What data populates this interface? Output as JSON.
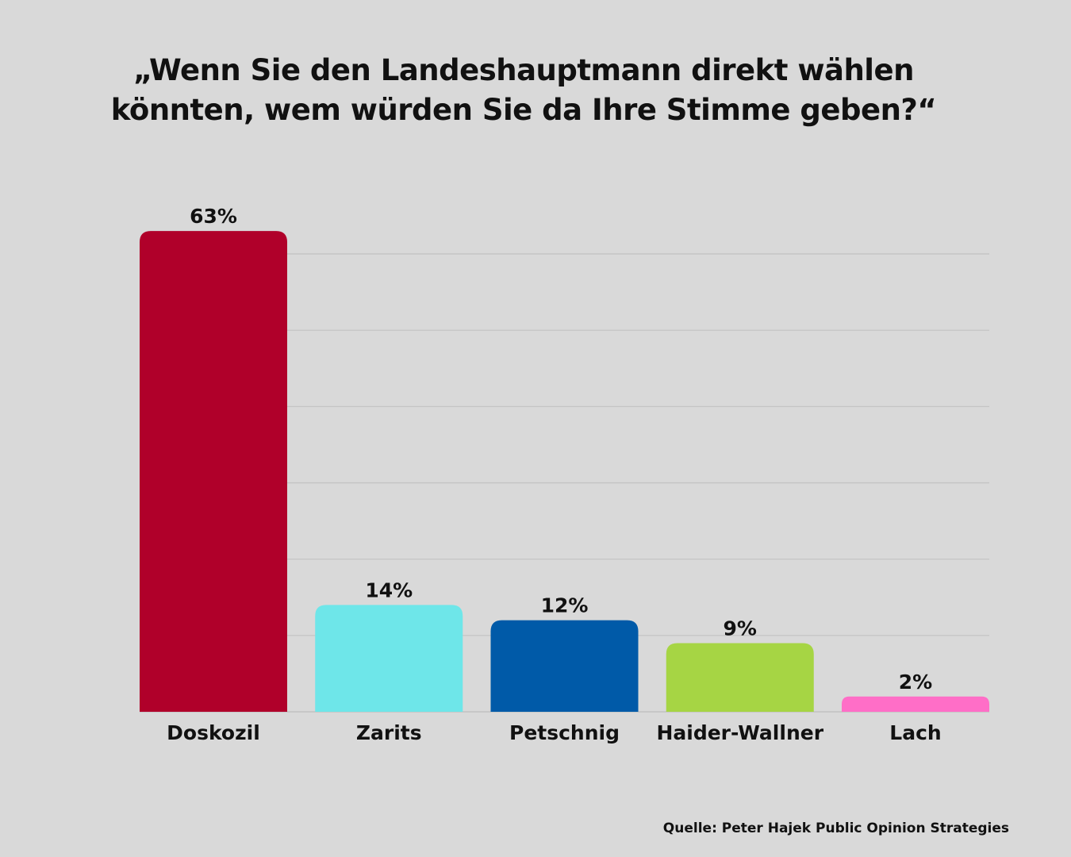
{
  "chart_data": {
    "type": "bar",
    "title": "„Wenn Sie den Landeshauptmann direkt wählen könnten, wem würden Sie da Ihre Stimme geben?“",
    "categories": [
      "Doskozil",
      "Zarits",
      "Petschnig",
      "Haider-Wallner",
      "Lach"
    ],
    "values": [
      63,
      14,
      12,
      9,
      2
    ],
    "value_labels": [
      "63%",
      "14%",
      "12%",
      "9%",
      "2%"
    ],
    "colors": [
      "#b0002a",
      "#6ee6e9",
      "#005aa8",
      "#a6d544",
      "#ff6ec7"
    ],
    "xlabel": "",
    "ylabel": "",
    "ylim": [
      0,
      60
    ],
    "grid": true,
    "source": "Quelle: Peter Hajek Public Opinion Strategies"
  }
}
